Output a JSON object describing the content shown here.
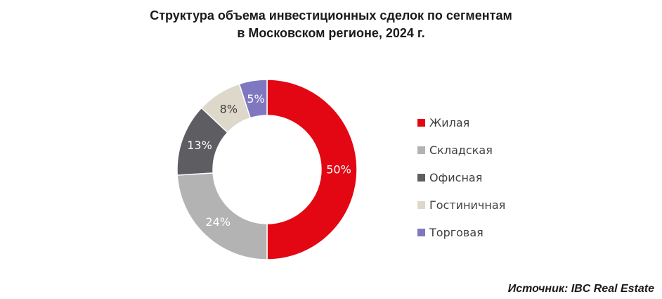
{
  "title": {
    "line1": "Структура объема инвестиционных сделок по сегментам",
    "line2": "в Московском регионе, 2024 г."
  },
  "source": "Источник: IBC Real Estate",
  "chart_data": {
    "type": "pie",
    "variant": "donut",
    "title": "Структура объема инвестиционных сделок по сегментам в Московском регионе, 2024 г.",
    "categories": [
      "Жилая",
      "Складская",
      "Офисная",
      "Гостиничная",
      "Торговая"
    ],
    "values": [
      50,
      24,
      13,
      8,
      5
    ],
    "labels": [
      "50%",
      "24%",
      "13%",
      "8%",
      "5%"
    ],
    "colors": [
      "#e30613",
      "#b3b3b3",
      "#5e5e62",
      "#ded8cb",
      "#7f77c0"
    ],
    "label_colors": [
      "#ffffff",
      "#ffffff",
      "#ffffff",
      "#404040",
      "#ffffff"
    ],
    "legend_position": "right"
  }
}
